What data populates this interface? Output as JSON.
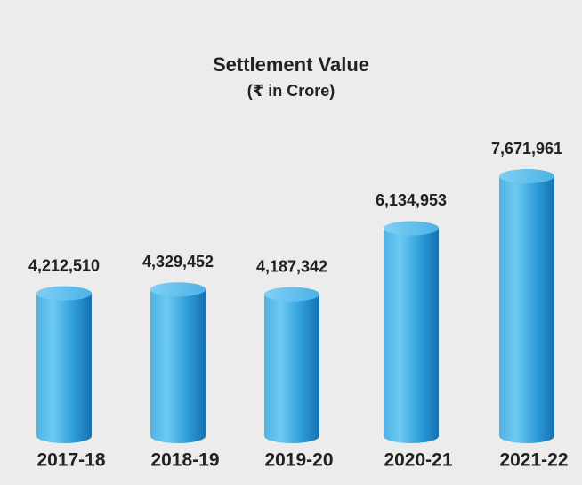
{
  "chart_data": {
    "type": "bar",
    "title": "Settlement Value",
    "subtitle": "(₹ in Crore)",
    "categories": [
      "2017-18",
      "2018-19",
      "2019-20",
      "2020-21",
      "2021-22"
    ],
    "values": [
      4212510,
      4329452,
      4187342,
      6134953,
      7671961
    ],
    "value_labels": [
      "4,212,510",
      "4,329,452",
      "4,187,342",
      "6,134,953",
      "7,671,961"
    ],
    "color": "#2a9ad6"
  }
}
